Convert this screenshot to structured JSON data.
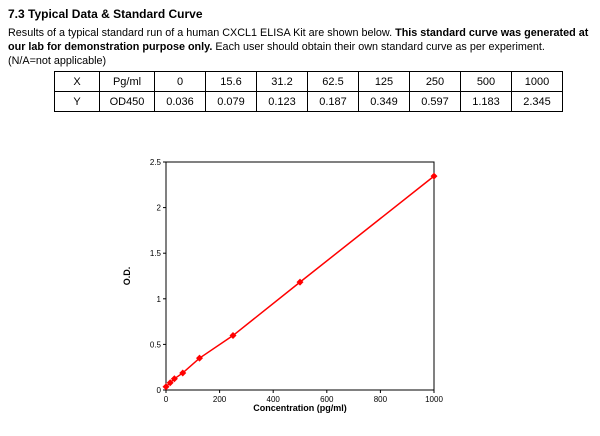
{
  "heading": "7.3 Typical Data & Standard Curve",
  "paragraph": {
    "part1": "Results of a typical standard run of a human CXCL1 ELISA Kit are shown below. ",
    "part2_bold": "This standard curve was generated at our lab for demonstration purpose only.",
    "part3": " Each user should obtain their own standard curve as per experiment.",
    "part4": "(N/A=not applicable)"
  },
  "table": {
    "rows": [
      [
        "X",
        "Pg/ml",
        "0",
        "15.6",
        "31.2",
        "62.5",
        "125",
        "250",
        "500",
        "1000"
      ],
      [
        "Y",
        "OD450",
        "0.036",
        "0.079",
        "0.123",
        "0.187",
        "0.349",
        "0.597",
        "1.183",
        "2.345"
      ]
    ]
  },
  "chart_data": {
    "type": "scatter",
    "x": [
      0,
      15.6,
      31.2,
      62.5,
      125,
      250,
      500,
      1000
    ],
    "y": [
      0.036,
      0.079,
      0.123,
      0.187,
      0.349,
      0.597,
      1.183,
      2.345
    ],
    "title": "",
    "xlabel": "Concentration (pg/ml)",
    "ylabel": "O.D.",
    "xlim": [
      0,
      1000
    ],
    "ylim": [
      0,
      2.5
    ],
    "x_ticks": [
      0,
      200,
      400,
      600,
      800,
      1000
    ],
    "y_ticks": [
      0,
      0.5,
      1,
      1.5,
      2,
      2.5
    ],
    "line_color": "#ff0000",
    "marker": "diamond",
    "grid": false,
    "legend": "none"
  }
}
